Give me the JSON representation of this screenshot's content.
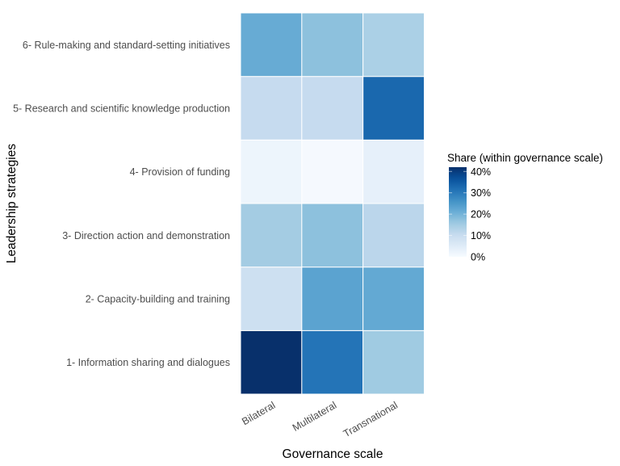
{
  "chart_data": {
    "type": "heatmap",
    "title": "",
    "xlabel": "Governance scale",
    "ylabel": "Leadership strategies",
    "x_categories": [
      "Bilateral",
      "Multilateral",
      "Transnational"
    ],
    "y_categories": [
      "1- Information sharing and dialogues",
      "2- Capacity-building and training",
      "3- Direction action and demonstration",
      "4- Provision of funding",
      "5- Research and scientific knowledge production",
      "6- Rule-making and standard-setting initiatives"
    ],
    "value_unit": "percent",
    "values": [
      [
        42.0,
        31.0,
        15.5
      ],
      [
        9.0,
        23.0,
        22.0
      ],
      [
        15.0,
        17.5,
        12.0
      ],
      [
        2.0,
        0.5,
        3.5
      ],
      [
        10.5,
        10.5,
        33.0
      ],
      [
        21.5,
        17.5,
        14.0
      ]
    ],
    "values_note": "rows follow y_categories order, columns follow x_categories order; each column sums to ~100%",
    "color_scale": {
      "palette": "Blues",
      "colors": [
        "#F7FBFF",
        "#DEEBF7",
        "#C6DBEF",
        "#9ECAE1",
        "#6BAED6",
        "#4292C6",
        "#2171B5",
        "#08519C",
        "#08306B"
      ],
      "limits": [
        0,
        42.0
      ]
    },
    "legend": {
      "title": "Share (within governance scale)",
      "placement": "right",
      "breaks": [
        0,
        10,
        20,
        30,
        40
      ],
      "labels": [
        "0%",
        "10%",
        "20%",
        "30%",
        "40%"
      ]
    },
    "grid": false
  }
}
